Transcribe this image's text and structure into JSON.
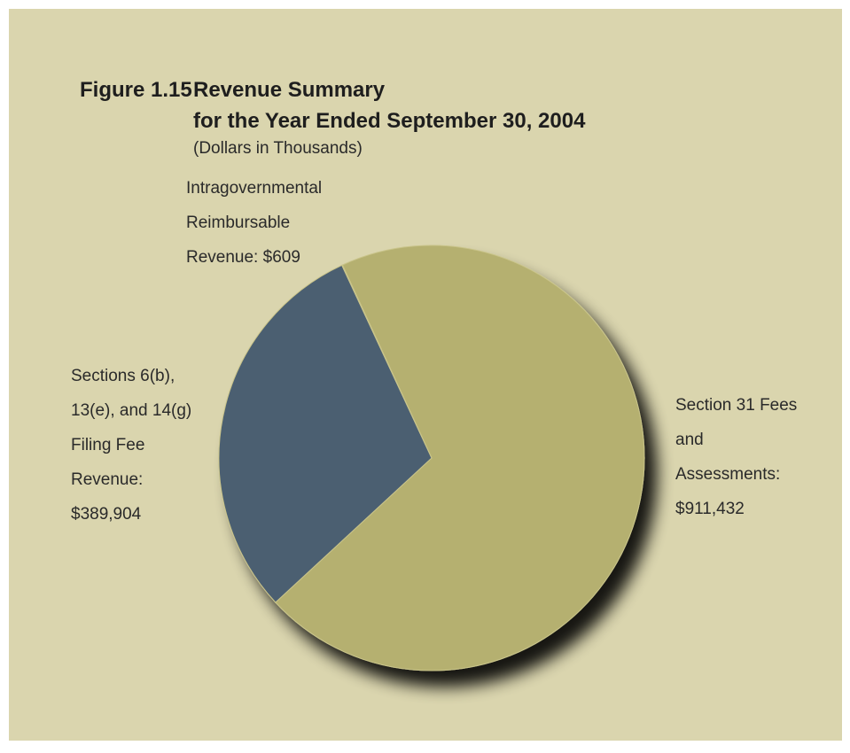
{
  "chart_data": {
    "type": "pie",
    "figure_label": "Figure 1.15",
    "title": [
      "Revenue Summary",
      "for the Year Ended September 30, 2004"
    ],
    "subtitle": "(Dollars in Thousands)",
    "categories": [
      "Section 31 Fees and Assessments:",
      "Sections 6(b), 13(e), and 14(g) Filing Fee Revenue:",
      "Intragovernmental Reimbursable Revenue:"
    ],
    "values": [
      911432,
      389904,
      609
    ],
    "value_labels": [
      "$911,432",
      "$389,904",
      "$609"
    ],
    "colors": [
      "#b5b06f",
      "#4c5e71",
      "#9b4a1c"
    ]
  }
}
